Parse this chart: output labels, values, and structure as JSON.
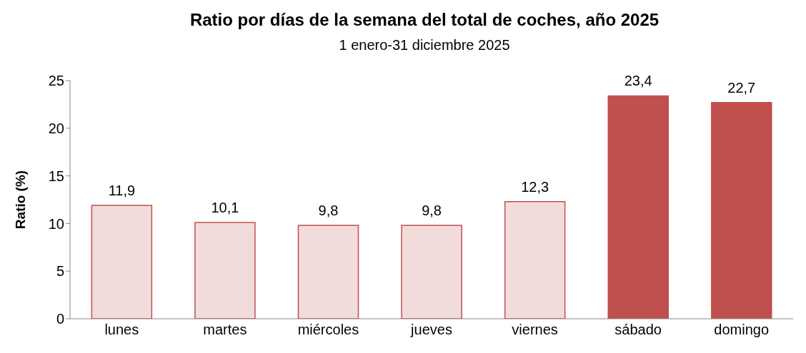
{
  "chart_data": {
    "type": "bar",
    "title": "Ratio por días de la semana del total de coches, año 2025",
    "subtitle": "1 enero-31 diciembre 2025",
    "ylabel": "Ratio (%)",
    "categories": [
      "lunes",
      "martes",
      "miércoles",
      "jueves",
      "viernes",
      "sábado",
      "domingo"
    ],
    "values": [
      11.9,
      10.1,
      9.8,
      9.8,
      12.3,
      23.4,
      22.7
    ],
    "colors": [
      "#f2dcdb",
      "#f2dcdb",
      "#f2dcdb",
      "#f2dcdb",
      "#f2dcdb",
      "#c0504d",
      "#c0504d"
    ],
    "value_labels": [
      "11,9",
      "10,1",
      "9,8",
      "9,8",
      "12,3",
      "23,4",
      "22,7"
    ],
    "ylim": [
      0,
      25
    ],
    "yticks": [
      0,
      5,
      10,
      15,
      20,
      25
    ],
    "grid": false
  }
}
